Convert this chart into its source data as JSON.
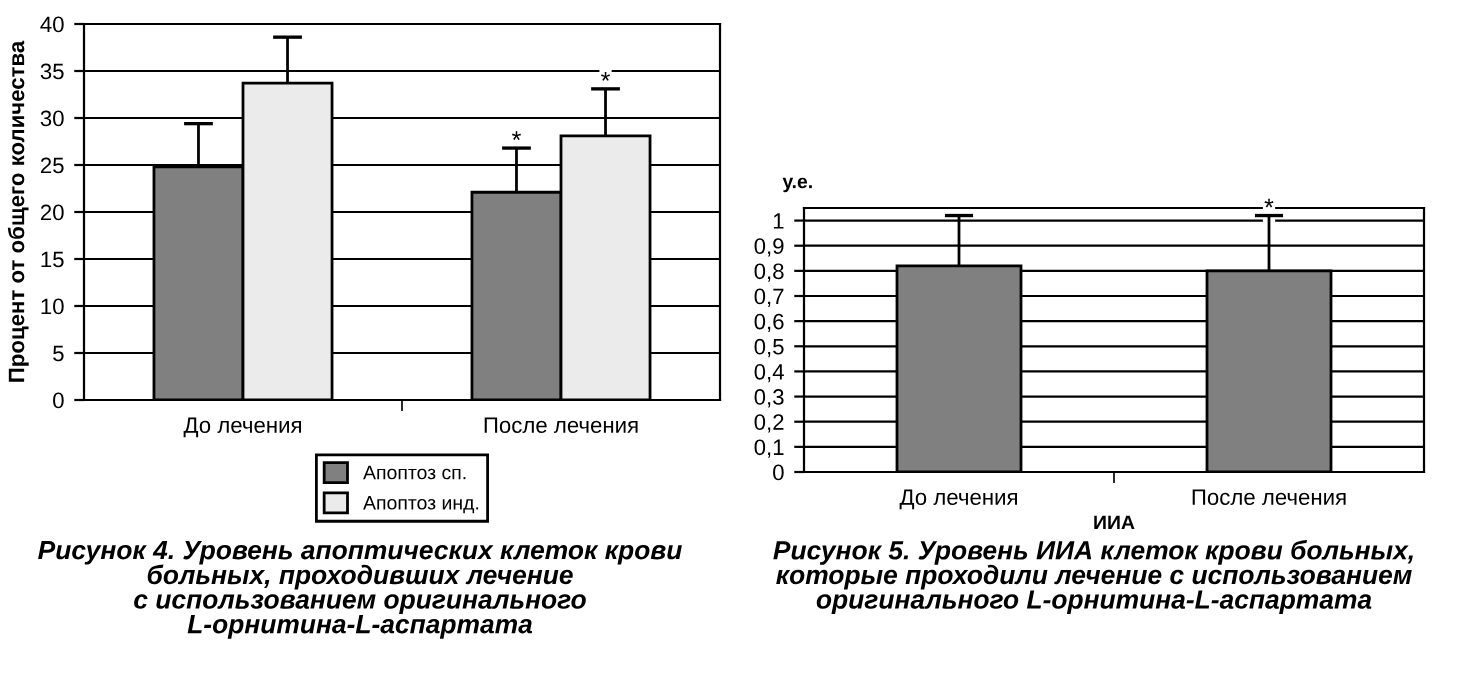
{
  "chart_data": [
    {
      "type": "bar",
      "title": "Рисунок 4. Уровень апоптических клеток крови\nбольных, проходивших лечение\nс использованием оригинального\nL-орнитина-L-аспартата",
      "ylabel": "Процент от общего количества",
      "categories": [
        "До лечения",
        "После лечения"
      ],
      "series": [
        {
          "name": "Апоптоз сп.",
          "color": "#808080",
          "values": [
            24.8,
            22.1
          ],
          "errors": [
            [
              24.8,
              29.4
            ],
            [
              22.1,
              26.8
            ]
          ]
        },
        {
          "name": "Апоптоз инд.",
          "color": "#ebebeb",
          "values": [
            33.7,
            28.1
          ],
          "errors": [
            [
              33.7,
              38.6
            ],
            [
              28.1,
              33.1
            ]
          ]
        }
      ],
      "ylim": [
        0,
        40
      ],
      "yticks": [
        0,
        5,
        10,
        15,
        20,
        25,
        30,
        35,
        40
      ],
      "grid": "y",
      "legend": "bottom",
      "annotations": [
        "*",
        "*"
      ]
    },
    {
      "type": "bar",
      "title": "Рисунок 5. Уровень ИИА клеток крови больных,\nкоторые проходили лечение с использованием\nоригинального L-орнитина-L-аспартата",
      "ylabel": "у.е.",
      "xlabel": "ИИА",
      "categories": [
        "До лечения",
        "После лечения"
      ],
      "series": [
        {
          "color": "#808080",
          "values": [
            0.82,
            0.8
          ],
          "errors": [
            [
              0.82,
              1.02
            ],
            [
              0.8,
              1.02
            ]
          ]
        }
      ],
      "ylim": [
        0,
        1.05
      ],
      "yticks": [
        {
          "value": 0,
          "label": "0"
        },
        {
          "value": 0.1,
          "label": "0,1"
        },
        {
          "value": 0.2,
          "label": "0,2"
        },
        {
          "value": 0.3,
          "label": "0,3"
        },
        {
          "value": 0.4,
          "label": "0,4"
        },
        {
          "value": 0.5,
          "label": "0,5"
        },
        {
          "value": 0.6,
          "label": "0,6"
        },
        {
          "value": 0.7,
          "label": "0,7"
        },
        {
          "value": 0.8,
          "label": "0,8"
        },
        {
          "value": 0.9,
          "label": "0,9"
        },
        {
          "value": 1,
          "label": "1"
        }
      ],
      "grid": "y",
      "annotations": [
        {
          "text": "*",
          "x": "После лечения",
          "y": 1.02
        }
      ]
    }
  ]
}
